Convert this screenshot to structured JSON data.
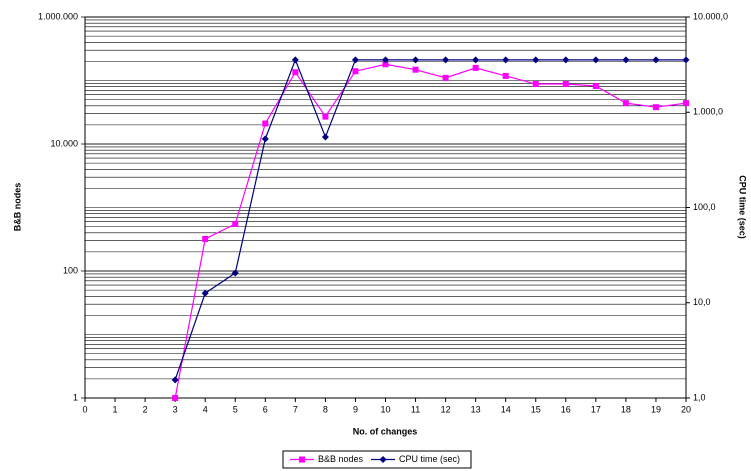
{
  "chart_data": {
    "type": "line",
    "x_label": "No. of changes",
    "y_label": "B&B nodes",
    "y2_label": "CPU time (sec)",
    "x": [
      3,
      4,
      5,
      6,
      7,
      8,
      9,
      10,
      11,
      12,
      13,
      14,
      15,
      16,
      17,
      18,
      19,
      20
    ],
    "xlim": [
      0,
      20
    ],
    "xticks": [
      0,
      1,
      2,
      3,
      4,
      5,
      6,
      7,
      8,
      9,
      10,
      11,
      12,
      13,
      14,
      15,
      16,
      17,
      18,
      19,
      20
    ],
    "ylim": [
      1,
      1000000
    ],
    "ylog": true,
    "yticks": [
      1,
      100,
      {
        "value": 10000,
        "label": "10.000"
      },
      {
        "value": 1000000,
        "label": "1.000.000"
      }
    ],
    "y2lim": [
      1,
      10000
    ],
    "y2log": true,
    "y2ticks": [
      {
        "value": 1,
        "label": "1,0"
      },
      {
        "value": 10,
        "label": "10,0"
      },
      {
        "value": 100,
        "label": "100,0"
      },
      {
        "value": 1000,
        "label": "1.000,0"
      },
      {
        "value": 10000,
        "label": "10.000,0"
      }
    ],
    "grid": true,
    "legend": "bottom",
    "series": [
      {
        "name": "B&B nodes",
        "color": "#ff00ff",
        "marker": "square",
        "values": [
          1,
          320,
          550,
          21000,
          135000,
          27000,
          140000,
          180000,
          148000,
          110000,
          158000,
          118000,
          88000,
          88000,
          82000,
          44000,
          38000,
          44000
        ]
      },
      {
        "name": "CPU time (sec)",
        "color": "#000080",
        "marker": "diamond",
        "axis": "y2",
        "values": [
          1.55,
          12.6,
          20.5,
          525,
          3550,
          550,
          3550,
          3550,
          3550,
          3550,
          3550,
          3550,
          3550,
          3550,
          3550,
          3550,
          3550,
          3550
        ]
      }
    ]
  }
}
